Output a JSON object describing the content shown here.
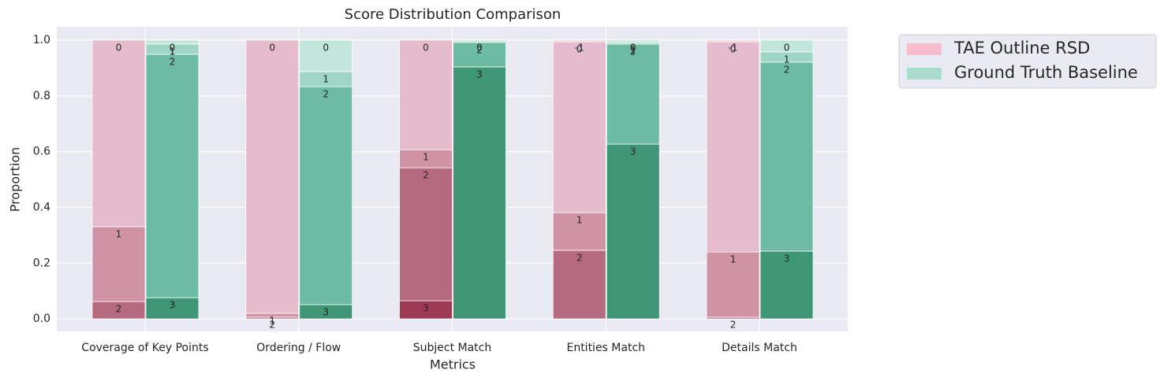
{
  "chart_data": {
    "type": "stacked-bar",
    "title": "Score Distribution Comparison",
    "x_label": "Metrics",
    "y_label": "Proportion",
    "categories": [
      "Coverage of Key Points",
      "Ordering / Flow",
      "Subject Match",
      "Entities Match",
      "Details Match"
    ],
    "ylim": [
      -0.045,
      1.048
    ],
    "yticks": [
      {
        "value": 0,
        "label": "0.0"
      },
      0.2,
      0.4,
      0.6,
      0.8,
      {
        "value": 1,
        "label": "1.0"
      }
    ],
    "grid": true,
    "legend": "outside-upper-right",
    "series": [
      {
        "name": "TAE Outline RSD",
        "color": "#f7bccd",
        "shades": {
          "3": "#9e3a55",
          "2": "#b66a80",
          "1": "#d093a6",
          "0": "#e4bccb",
          "-1": "#ecd0da"
        },
        "stacks": [
          {
            "labels": [
              "2",
              "1",
              "0"
            ],
            "values": [
              0.062,
              0.269,
              0.669
            ]
          },
          {
            "labels": [
              "2",
              "1",
              "0"
            ],
            "values": [
              0.006,
              0.014,
              0.98
            ]
          },
          {
            "labels": [
              "3",
              "2",
              "1",
              "0"
            ],
            "values": [
              0.065,
              0.477,
              0.065,
              0.393
            ]
          },
          {
            "labels": [
              "2",
              "1",
              "0",
              "-1"
            ],
            "values": [
              0.246,
              0.135,
              0.613,
              0.006
            ]
          },
          {
            "labels": [
              "2",
              "1",
              "0",
              "-1"
            ],
            "values": [
              0.006,
              0.234,
              0.754,
              0.006
            ]
          }
        ]
      },
      {
        "name": "Ground Truth Baseline",
        "color": "#a9dccd",
        "shades": {
          "3": "#3e9677",
          "2": "#6dbba3",
          "1": "#9ed5c4",
          "0": "#c2e6dc"
        },
        "stacks": [
          {
            "labels": [
              "3",
              "2",
              "1",
              "0"
            ],
            "values": [
              0.076,
              0.873,
              0.037,
              0.014
            ]
          },
          {
            "labels": [
              "3",
              "2",
              "1",
              "0"
            ],
            "values": [
              0.051,
              0.782,
              0.054,
              0.113
            ]
          },
          {
            "labels": [
              "3",
              "2",
              "0"
            ],
            "values": [
              0.904,
              0.088,
              0.008
            ]
          },
          {
            "labels": [
              "3",
              "2",
              "1",
              "0"
            ],
            "values": [
              0.627,
              0.359,
              0.006,
              0.008
            ]
          },
          {
            "labels": [
              "3",
              "2",
              "1",
              "0"
            ],
            "values": [
              0.243,
              0.678,
              0.037,
              0.042
            ]
          }
        ]
      }
    ]
  }
}
